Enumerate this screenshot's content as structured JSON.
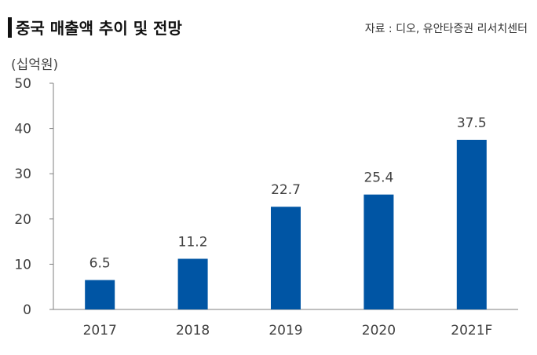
{
  "header": {
    "title": "중국 매출액 추이 및 전망",
    "source": "자료 : 디오, 유안타증권 리서치센터"
  },
  "colors": {
    "bar": "#0055a4",
    "axis": "#7f7f7f",
    "text": "#404040"
  },
  "chart_data": {
    "type": "bar",
    "title": "중국 매출액 추이 및 전망",
    "unit_label": "(십억원)",
    "categories": [
      "2017",
      "2018",
      "2019",
      "2020",
      "2021F"
    ],
    "values": [
      6.5,
      11.2,
      22.7,
      25.4,
      37.5
    ],
    "data_labels": [
      "6.5",
      "11.2",
      "22.7",
      "25.4",
      "37.5"
    ],
    "y_ticks": [
      0,
      10,
      20,
      30,
      40,
      50
    ],
    "ylim": [
      0,
      50
    ],
    "xlabel": "",
    "ylabel": "(십억원)",
    "grid": false,
    "legend": "none"
  }
}
